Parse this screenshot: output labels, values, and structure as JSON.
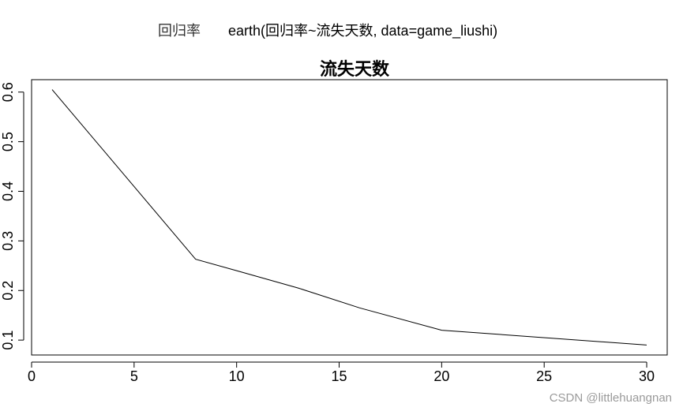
{
  "header": {
    "ylabel": "回归率",
    "call": "earth(回归率~流失天数, data=game_liushi)"
  },
  "watermark": "CSDN @littlehuangnan",
  "chart_data": {
    "type": "line",
    "title": "流失天数",
    "xlabel": "",
    "ylabel": "",
    "xlim": [
      0,
      31
    ],
    "ylim": [
      0.07,
      0.625
    ],
    "x_ticks": [
      0,
      5,
      10,
      15,
      20,
      25,
      30
    ],
    "y_ticks": [
      0.1,
      0.2,
      0.3,
      0.4,
      0.5,
      0.6
    ],
    "x_tick_labels": [
      "0",
      "5",
      "10",
      "15",
      "20",
      "25",
      "30"
    ],
    "y_tick_labels": [
      "0.1",
      "0.2",
      "0.3",
      "0.4",
      "0.5",
      "0.6"
    ],
    "grid": false,
    "series": [
      {
        "x": [
          1,
          8,
          10,
          13,
          16,
          20,
          30
        ],
        "y": [
          0.605,
          0.263,
          0.24,
          0.205,
          0.165,
          0.12,
          0.09
        ]
      }
    ],
    "colors": {
      "line": "#000000",
      "axis": "#000000"
    }
  }
}
